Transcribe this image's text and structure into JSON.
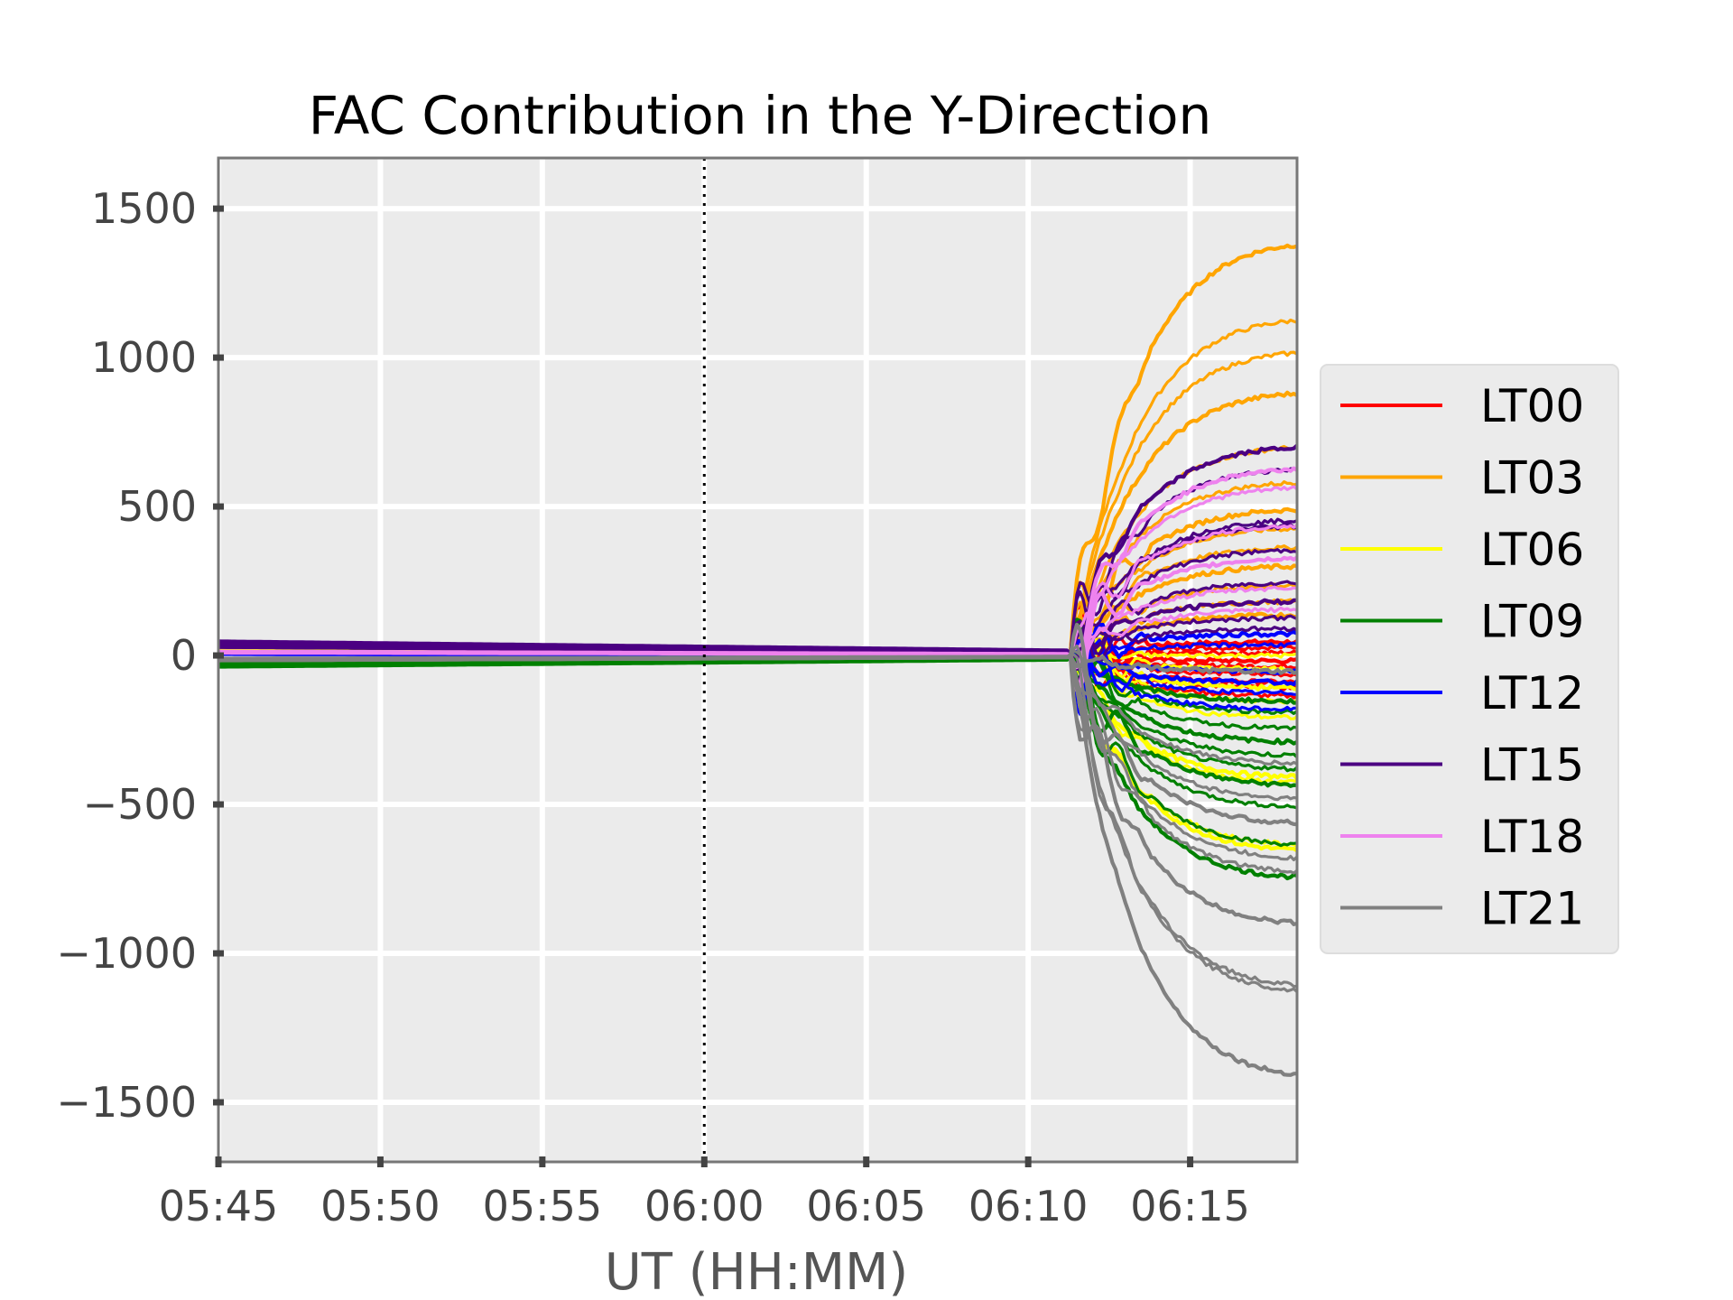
{
  "chart_data": {
    "type": "line",
    "title": "FAC Contribution in the Y-Direction",
    "xlabel": "UT (HH:MM)",
    "ylabel": "",
    "x_ticks": [
      "05:45",
      "05:50",
      "05:55",
      "06:00",
      "06:05",
      "06:10",
      "06:15"
    ],
    "x_range_minutes": [
      0,
      33.3
    ],
    "x_start_label": "05:45",
    "ylim": [
      -1700,
      1670
    ],
    "y_ticks": [
      1500,
      1000,
      500,
      0,
      -500,
      -1000,
      -1500
    ],
    "y_tick_labels": [
      "1500",
      "1000",
      "500",
      "0",
      "−500",
      "−1000",
      "−1500"
    ],
    "vline_x": "06:00",
    "grid": true,
    "legend_position": "right",
    "series": [
      {
        "name": "LT00",
        "color": "#ff0000",
        "early": 12,
        "finals": [
          50,
          30,
          10,
          -20,
          -40,
          -70,
          -100,
          -120,
          -150
        ]
      },
      {
        "name": "LT03",
        "color": "#ffa500",
        "early": 20,
        "finals": [
          1520,
          1240,
          1120,
          970,
          770,
          640,
          540,
          470,
          400,
          330,
          260,
          200,
          150
        ],
        "spikes": [
          880,
          900,
          640,
          420,
          300
        ]
      },
      {
        "name": "LT06",
        "color": "#ffff00",
        "early": 15,
        "finals": [
          -720,
          -700,
          -470,
          -450,
          -230,
          -170,
          -120,
          -50,
          0
        ]
      },
      {
        "name": "LT09",
        "color": "#008000",
        "early": -30,
        "finals": [
          -820,
          -700,
          -560,
          -480,
          -420,
          -370,
          -320,
          -270,
          -210,
          -170
        ]
      },
      {
        "name": "LT12",
        "color": "#0000ff",
        "early": 5,
        "finals": [
          80,
          40,
          -60,
          -100,
          -140,
          -200
        ]
      },
      {
        "name": "LT15",
        "color": "#4b0082",
        "early": 40,
        "finals": [
          770,
          690,
          500,
          480,
          390,
          270,
          200,
          140,
          100
        ]
      },
      {
        "name": "LT18",
        "color": "#ee82ee",
        "early": 10,
        "finals": [
          690,
          620,
          480,
          360,
          250,
          170
        ]
      },
      {
        "name": "LT21",
        "color": "#808080",
        "early": -15,
        "finals": [
          -1550,
          -1240,
          -1220,
          -990,
          -800,
          -750,
          -620,
          -530,
          -400,
          -60
        ]
      }
    ]
  }
}
